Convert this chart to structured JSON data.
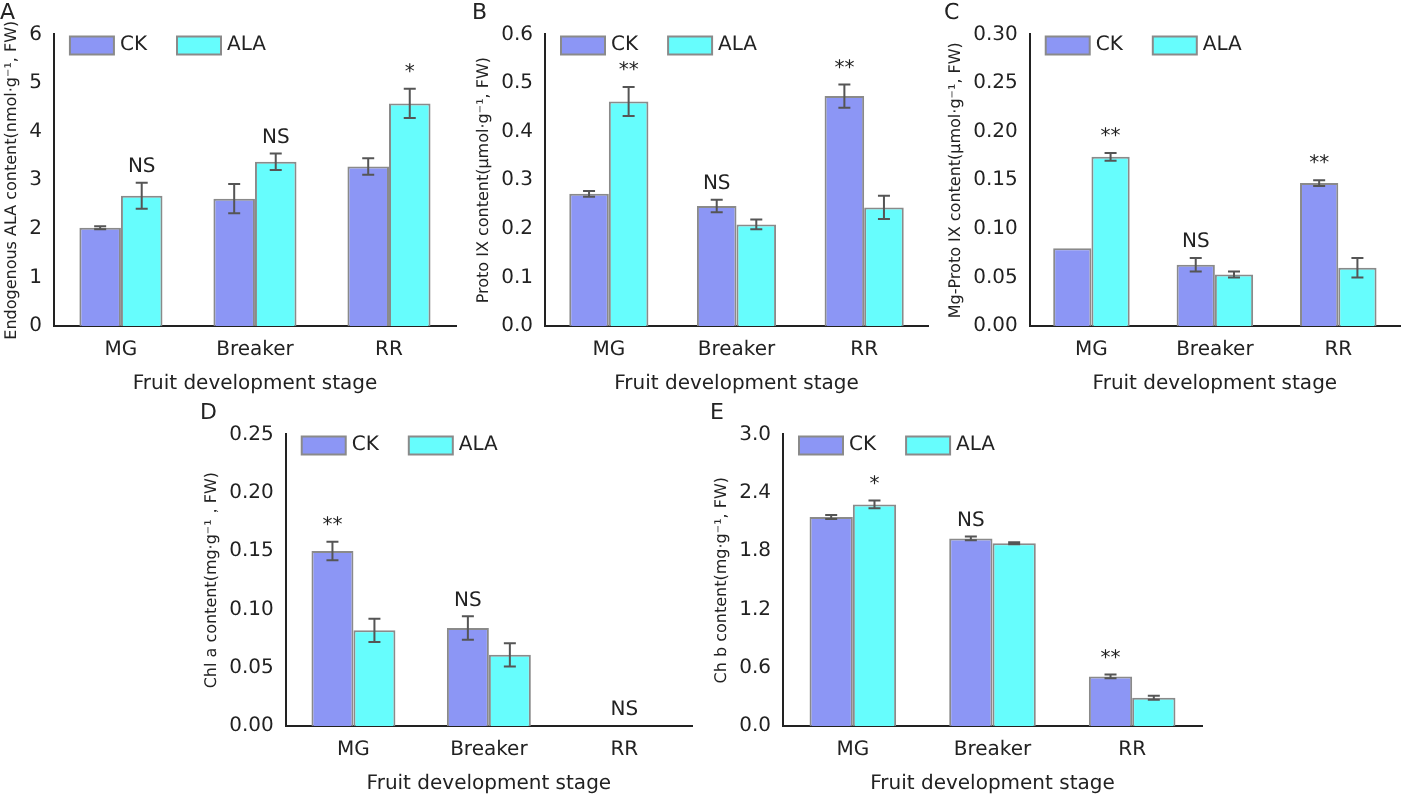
{
  "chart_data": [
    {
      "type": "bar",
      "title": "A",
      "xlabel": "Fruit development stage",
      "ylabel": "Endogenous ALA content(nmol·g⁻¹, FW)",
      "categories": [
        "MG",
        "Breaker",
        "RR"
      ],
      "legend": "top left",
      "ylim": [
        0,
        6
      ],
      "yticks": [
        0,
        1,
        2,
        3,
        4,
        5,
        6
      ],
      "series": [
        {
          "name": "CK",
          "color": "#8c96f5",
          "values": [
            2.02,
            2.62,
            3.28
          ],
          "errors": [
            0.03,
            0.3,
            0.17
          ]
        },
        {
          "name": "ALA",
          "color": "#66fdfd",
          "values": [
            2.68,
            3.38,
            4.58
          ],
          "errors": [
            0.27,
            0.17,
            0.3
          ]
        }
      ],
      "annotations": [
        {
          "text": "NS",
          "x": "MG",
          "y": 2.68
        },
        {
          "text": "NS",
          "x": "Breaker",
          "y": 3.38
        },
        {
          "text": "*",
          "x": "RR",
          "y": 4.58
        }
      ]
    },
    {
      "type": "bar",
      "title": "B",
      "xlabel": "Fruit development stage",
      "ylabel": "Proto IX content(μmol·g⁻¹, FW)",
      "categories": [
        "MG",
        "Breaker",
        "RR"
      ],
      "legend": "top left",
      "ylim": [
        0,
        0.6
      ],
      "yticks": [
        {
          "value": 0,
          "label": "0.0"
        },
        0.1,
        0.2,
        0.3,
        0.4,
        0.5,
        0.6
      ],
      "series": [
        {
          "name": "CK",
          "color": "#8c96f5",
          "values": [
            0.272,
            0.247,
            0.473
          ],
          "errors": [
            0.006,
            0.013,
            0.024
          ]
        },
        {
          "name": "ALA",
          "color": "#66fdfd",
          "values": [
            0.462,
            0.209,
            0.244
          ],
          "errors": [
            0.03,
            0.01,
            0.024
          ]
        }
      ],
      "annotations": [
        {
          "text": "**",
          "x": "MG",
          "y": 0.462
        },
        {
          "text": "NS",
          "x": "Breaker",
          "y": 0.247
        },
        {
          "text": "**",
          "x": "RR",
          "y": 0.473
        }
      ]
    },
    {
      "type": "bar",
      "title": "C",
      "xlabel": "Fruit development stage",
      "ylabel": "Mg-Proto IX content(μmol·g⁻¹, FW)",
      "categories": [
        "MG",
        "Breaker",
        "RR"
      ],
      "legend": "top left",
      "ylim": [
        0,
        0.3
      ],
      "yticks": [
        {
          "value": 0,
          "label": "0.00"
        },
        {
          "value": 0.05,
          "label": "0.05"
        },
        {
          "value": 0.1,
          "label": "0.10"
        },
        {
          "value": 0.15,
          "label": "0.15"
        },
        {
          "value": 0.2,
          "label": "0.20"
        },
        {
          "value": 0.25,
          "label": "0.25"
        },
        {
          "value": 0.3,
          "label": "0.30"
        }
      ],
      "series": [
        {
          "name": "CK",
          "color": "#8c96f5",
          "values": [
            0.08,
            0.063,
            0.147
          ],
          "errors": [
            null,
            0.007,
            0.003
          ]
        },
        {
          "name": "ALA",
          "color": "#66fdfd",
          "values": [
            0.174,
            0.053,
            0.06
          ],
          "errors": [
            0.004,
            0.003,
            0.01
          ]
        }
      ],
      "annotations": [
        {
          "text": "**",
          "x": "MG",
          "y": 0.174
        },
        {
          "text": "NS",
          "x": "Breaker",
          "y": 0.063
        },
        {
          "text": "**",
          "x": "RR",
          "y": 0.147
        }
      ]
    },
    {
      "type": "bar",
      "title": "D",
      "xlabel": "Fruit development stage",
      "ylabel": "Chl a content(mg·g⁻¹，FW)",
      "categories": [
        "MG",
        "Breaker",
        "RR"
      ],
      "legend": "top left",
      "ylim": [
        0,
        0.25
      ],
      "yticks": [
        {
          "value": 0,
          "label": "0.00"
        },
        {
          "value": 0.05,
          "label": "0.05"
        },
        {
          "value": 0.1,
          "label": "0.10"
        },
        {
          "value": 0.15,
          "label": "0.15"
        },
        {
          "value": 0.2,
          "label": "0.20"
        },
        {
          "value": 0.25,
          "label": "0.25"
        }
      ],
      "series": [
        {
          "name": "CK",
          "color": "#8c96f5",
          "values": [
            0.15,
            0.084,
            null
          ],
          "errors": [
            0.008,
            0.01,
            null
          ]
        },
        {
          "name": "ALA",
          "color": "#66fdfd",
          "values": [
            0.082,
            0.061,
            null
          ],
          "errors": [
            0.01,
            0.01,
            null
          ]
        }
      ],
      "annotations": [
        {
          "text": "**",
          "x": "MG",
          "y": 0.15
        },
        {
          "text": "NS",
          "x": "Breaker",
          "y": 0.084
        },
        "NS"
      ]
    },
    {
      "type": "bar",
      "title": "E",
      "xlabel": "Fruit development stage",
      "ylabel": "Ch b content(mg·g⁻¹, FW)",
      "categories": [
        "MG",
        "Breaker",
        "RR"
      ],
      "legend": "top left",
      "ylim": [
        0,
        3
      ],
      "yticks": [
        {
          "value": 0,
          "label": "0.0"
        },
        0.6,
        1.2,
        1.8,
        2.4,
        {
          "value": 3,
          "label": "3.0"
        }
      ],
      "series": [
        {
          "name": "CK",
          "color": "#8c96f5",
          "values": [
            2.15,
            1.93,
            0.51
          ],
          "errors": [
            0.02,
            0.02,
            0.02
          ]
        },
        {
          "name": "ALA",
          "color": "#66fdfd",
          "values": [
            2.28,
            1.88,
            0.29
          ],
          "errors": [
            0.04,
            0.01,
            0.02
          ]
        }
      ],
      "annotations": [
        {
          "text": "*",
          "x": "MG",
          "y": 2.28
        },
        {
          "text": "NS",
          "x": "Breaker",
          "y": 1.93
        },
        {
          "text": "**",
          "x": "RR",
          "y": 0.51
        }
      ]
    }
  ]
}
